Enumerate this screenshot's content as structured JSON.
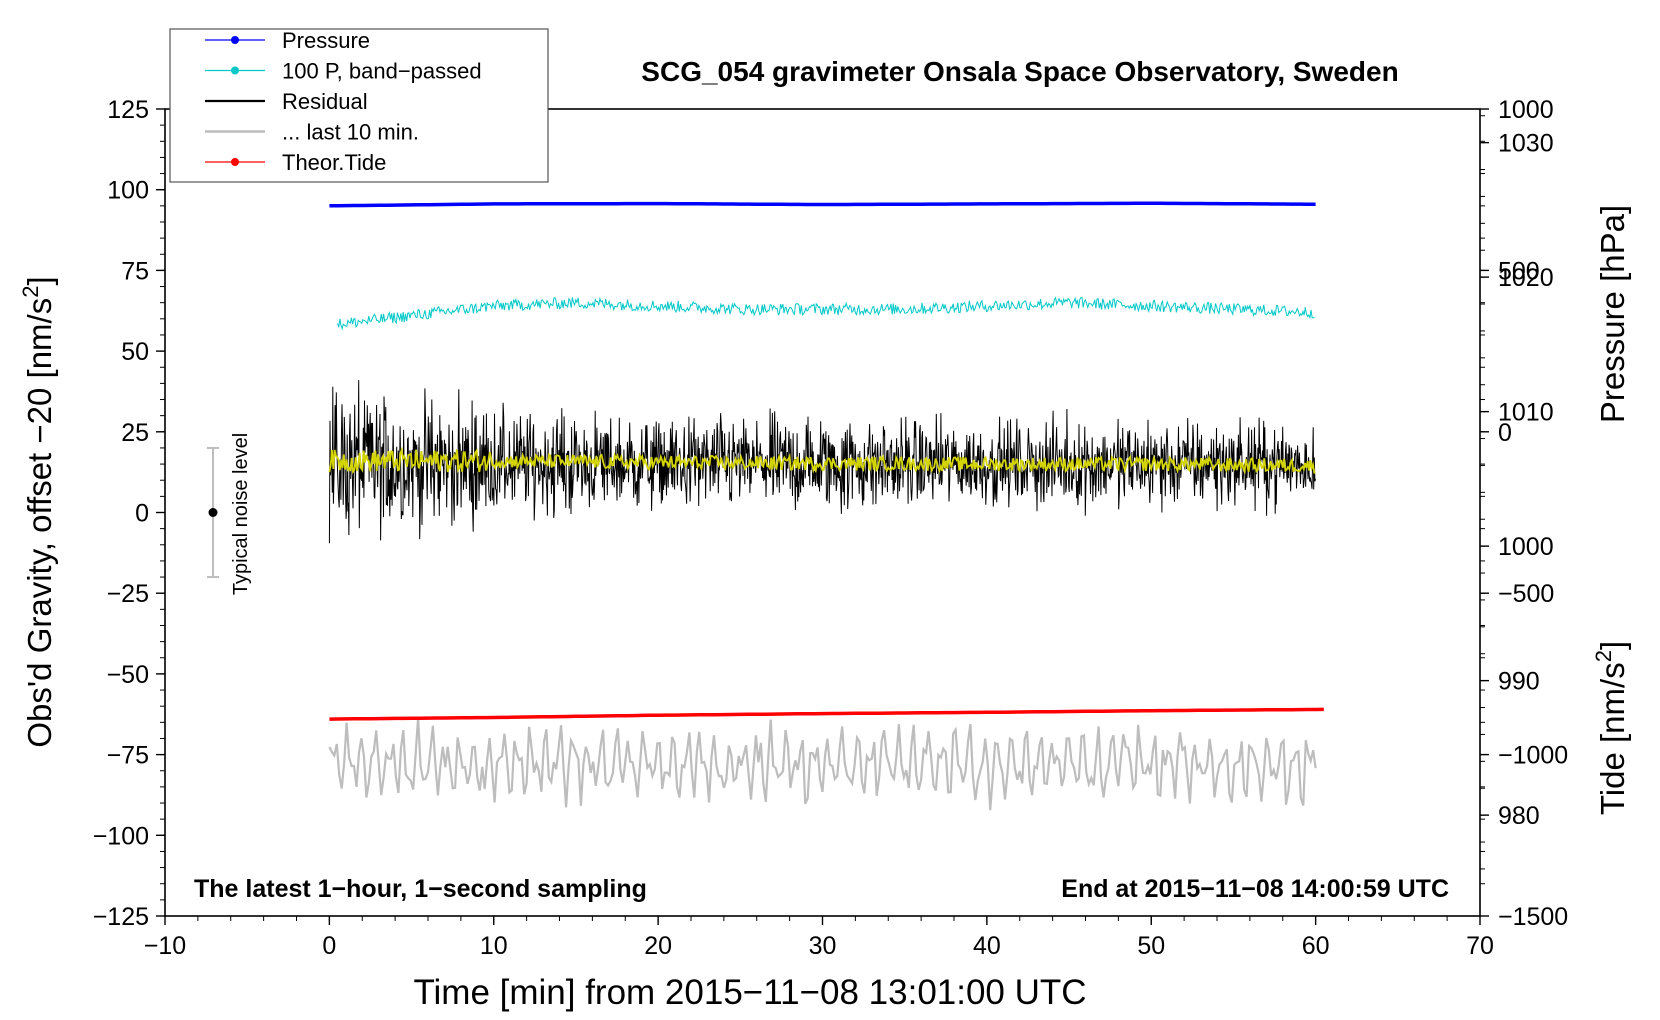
{
  "chart_data": {
    "type": "line",
    "title": "SCG_054 gravimeter Onsala Space Observatory, Sweden",
    "xlabel": "Time [min] from 2015−11−08 13:01:00 UTC",
    "ylabel_left": "Obs'd Gravity, offset −20 [nm/s",
    "ylabel_left_sup": "2",
    "ylabel_left_end": "]",
    "ylabel_pressure": "Pressure [hPa]",
    "ylabel_tide": "Tide [nm/s",
    "ylabel_tide_sup": "2",
    "ylabel_tide_end": "]",
    "xlim": [
      -10,
      70
    ],
    "ylim": [
      -125,
      125
    ],
    "pressure_lim": [
      972.5,
      1032.5
    ],
    "tide_lim": [
      -1500,
      1000
    ],
    "x_ticks": [
      -10,
      0,
      10,
      20,
      30,
      40,
      50,
      60,
      70
    ],
    "x_tick_labels": [
      "−10",
      "0",
      "10",
      "20",
      "30",
      "40",
      "50",
      "60",
      "70"
    ],
    "y_ticks": [
      125,
      100,
      75,
      50,
      25,
      0,
      -25,
      -50,
      -75,
      -100,
      -125
    ],
    "y_tick_labels": [
      "125",
      "100",
      "75",
      "50",
      "25",
      "0",
      "−25",
      "−50",
      "−75",
      "−100",
      "−125"
    ],
    "pressure_ticks": [
      1030,
      1020,
      1010,
      1000,
      990,
      980
    ],
    "pressure_tick_labels": [
      "1030",
      "1020",
      "1010",
      "1000",
      "990",
      "980"
    ],
    "tide_ticks": [
      1000,
      500,
      0,
      -500,
      -1000,
      -1500
    ],
    "tide_tick_labels": [
      "1000",
      "500",
      "0",
      "−500",
      "−1000",
      "−1500"
    ],
    "legend": {
      "placement": "top-left",
      "entries": [
        {
          "label": "Pressure",
          "color": "#0000ff",
          "marker": true
        },
        {
          "label": "100 P, band−passed",
          "color": "#00c8c8",
          "marker": true
        },
        {
          "label": "Residual",
          "color": "#000000",
          "marker": false
        },
        {
          "label": "... last 10 min.",
          "color": "#bdbdbd",
          "marker": false
        },
        {
          "label": "Theor.Tide",
          "color": "#ff0000",
          "marker": true
        }
      ]
    },
    "annotations": {
      "noise_label": "Typical noise level",
      "noise_center": 0,
      "noise_range": [
        -20,
        20
      ],
      "bottom_left": "The latest 1−hour, 1−second sampling",
      "bottom_right": "End at 2015−11−08 14:00:59 UTC"
    },
    "series": [
      {
        "name": "Pressure",
        "axis": "gravity",
        "color": "#0000ff",
        "x": [
          0,
          10,
          20,
          30,
          40,
          50,
          60
        ],
        "values": [
          95.0,
          95.6,
          95.7,
          95.4,
          95.6,
          95.8,
          95.5
        ]
      },
      {
        "name": "100 P, band−passed",
        "axis": "gravity",
        "color": "#00c8c8",
        "x": [
          0,
          5,
          10,
          15,
          20,
          25,
          30,
          35,
          40,
          45,
          50,
          55,
          60
        ],
        "values": [
          58,
          61,
          64,
          65,
          64,
          63,
          63,
          63,
          64,
          65,
          64,
          63,
          62
        ],
        "noise_amplitude": 1.8
      },
      {
        "name": "Residual",
        "axis": "gravity",
        "color": "#000000",
        "x": [
          0,
          5,
          10,
          20,
          30,
          40,
          50,
          60
        ],
        "values": [
          15,
          15,
          15,
          15,
          15,
          15,
          15,
          15
        ],
        "envelope": [
          [
            0,
            36
          ],
          [
            5,
            30
          ],
          [
            10,
            24
          ],
          [
            20,
            20
          ],
          [
            30,
            22
          ],
          [
            40,
            18
          ],
          [
            50,
            20
          ],
          [
            60,
            17
          ]
        ]
      },
      {
        "name": "Residual, smoothed",
        "axis": "gravity",
        "color": "#d4d400",
        "x": [
          0,
          10,
          20,
          30,
          40,
          50,
          60
        ],
        "values": [
          16,
          16,
          15.5,
          15.2,
          15,
          15,
          14.5
        ],
        "noise_amplitude": 2.2
      },
      {
        "name": "... last 10 min.",
        "axis": "gravity",
        "color": "#bdbdbd",
        "x": [
          0,
          60
        ],
        "values": [
          -78,
          -78
        ],
        "amplitude": 12
      },
      {
        "name": "Theor.Tide",
        "axis": "gravity",
        "color": "#ff0000",
        "x": [
          0,
          10,
          20,
          30,
          40,
          50,
          60.5
        ],
        "values": [
          -64,
          -63.5,
          -62.8,
          -62.3,
          -61.9,
          -61.4,
          -61.0
        ]
      }
    ]
  }
}
